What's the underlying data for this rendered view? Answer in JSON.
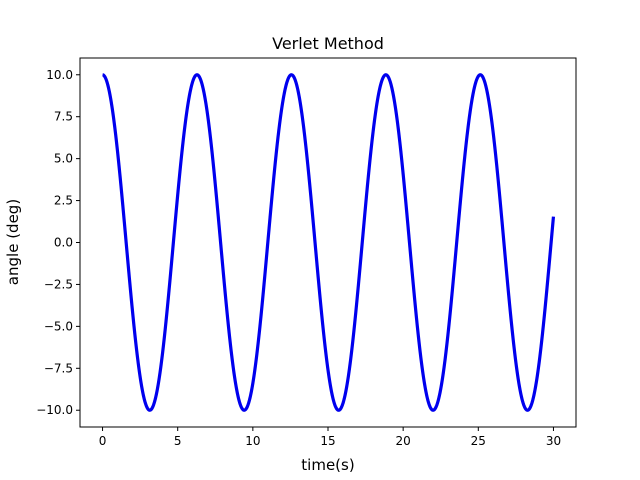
{
  "chart_data": {
    "type": "line",
    "title": "Verlet Method",
    "xlabel": "time(s)",
    "ylabel": "angle (deg)",
    "xlim": [
      -1.5,
      31.5
    ],
    "ylim": [
      -11.0,
      11.0
    ],
    "grid": false,
    "legend": "none",
    "x_ticks": [
      0,
      5,
      10,
      15,
      20,
      25,
      30
    ],
    "x_tick_labels": [
      "0",
      "5",
      "10",
      "15",
      "20",
      "25",
      "30"
    ],
    "y_ticks": [
      10.0,
      7.5,
      5.0,
      2.5,
      0.0,
      -2.5,
      -5.0,
      -7.5,
      -10.0
    ],
    "y_tick_labels": [
      "10.0",
      "7.5",
      "5.0",
      "2.5",
      "0.0",
      "−2.5",
      "−5.0",
      "−7.5",
      "−10.0"
    ],
    "series": [
      {
        "color": "#0000ee",
        "function": "10*cos(t)",
        "x_range": [
          0,
          30
        ],
        "x": [
          0,
          1.5708,
          3.1416,
          4.7124,
          6.2832,
          7.854,
          9.4248,
          10.9956,
          12.5664,
          14.1372,
          15.708,
          17.2788,
          18.8496,
          20.4204,
          21.9911,
          23.5619,
          25.1327,
          26.7035,
          28.2743,
          29.8451,
          30
        ],
        "y": [
          10,
          0,
          -10,
          0,
          10,
          0,
          -10,
          0,
          10,
          0,
          -10,
          0,
          10,
          0,
          -10,
          0,
          10,
          0,
          -10,
          0,
          1.5
        ]
      }
    ]
  }
}
